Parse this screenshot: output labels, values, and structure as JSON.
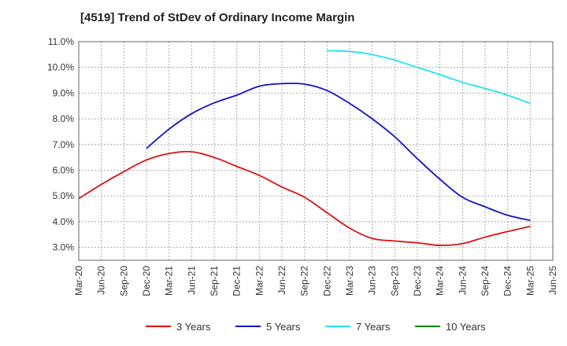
{
  "chart_data": {
    "type": "line",
    "title": "[4519]  Trend of StDev of Ordinary Income Margin",
    "xlabel": "",
    "ylabel": "",
    "ylim": [
      2.5,
      11.0
    ],
    "y_ticks": [
      3.0,
      4.0,
      5.0,
      6.0,
      7.0,
      8.0,
      9.0,
      10.0,
      11.0
    ],
    "y_tick_labels": [
      "3.0%",
      "4.0%",
      "5.0%",
      "6.0%",
      "7.0%",
      "8.0%",
      "9.0%",
      "10.0%",
      "11.0%"
    ],
    "x_tick_labels": [
      "Mar-20",
      "Jun-20",
      "Sep-20",
      "Dec-20",
      "Mar-21",
      "Jun-21",
      "Sep-21",
      "Dec-21",
      "Mar-22",
      "Jun-22",
      "Sep-22",
      "Dec-22",
      "Mar-23",
      "Jun-23",
      "Sep-23",
      "Dec-23",
      "Mar-24",
      "Jun-24",
      "Sep-24",
      "Dec-24",
      "Mar-25",
      "Jun-25"
    ],
    "grid": true,
    "legend_position": "bottom",
    "series": [
      {
        "name": "3 Years",
        "color": "#dd1111",
        "values": [
          4.9,
          5.45,
          5.95,
          6.4,
          6.65,
          6.72,
          6.5,
          6.15,
          5.8,
          5.35,
          4.95,
          4.35,
          3.75,
          3.35,
          3.25,
          3.18,
          3.08,
          3.15,
          3.4,
          3.62,
          3.82,
          null
        ]
      },
      {
        "name": "5 Years",
        "color": "#1111cc",
        "values": [
          null,
          null,
          null,
          6.85,
          7.6,
          8.2,
          8.62,
          8.92,
          9.27,
          9.37,
          9.35,
          9.1,
          8.6,
          8.0,
          7.3,
          6.45,
          5.65,
          4.95,
          4.58,
          4.25,
          4.05,
          null
        ]
      },
      {
        "name": "7 Years",
        "color": "#22e5ee",
        "values": [
          null,
          null,
          null,
          null,
          null,
          null,
          null,
          null,
          null,
          null,
          null,
          10.65,
          10.62,
          10.5,
          10.28,
          10.0,
          9.72,
          9.42,
          9.18,
          8.92,
          8.6,
          null
        ]
      },
      {
        "name": "10 Years",
        "color": "#118811",
        "values": []
      }
    ]
  }
}
